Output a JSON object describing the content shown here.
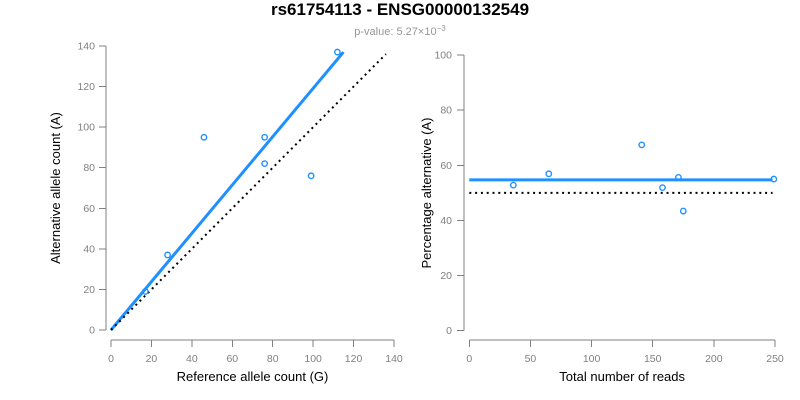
{
  "header": {
    "title": "rs61754113 - ENSG00000132549",
    "pvalue_label": "p-value: ",
    "pvalue_mantissa": "5.27",
    "pvalue_times10": "×10",
    "pvalue_exponent": "−3"
  },
  "colors": {
    "accent_blue": "#1E90FF",
    "dotted_line_black": "#000000",
    "axis_gray": "#808080",
    "tick_label_gray": "#808080",
    "axis_title_black": "#000000",
    "subtitle_gray": "#969696",
    "background": "#ffffff"
  },
  "chart_data": [
    {
      "type": "scatter",
      "name": "allele-counts-scatter",
      "xlabel": "Reference allele count (G)",
      "ylabel": "Alternative allele count (A)",
      "xlim": [
        0,
        140
      ],
      "ylim": [
        0,
        140
      ],
      "xticks": [
        0,
        20,
        40,
        60,
        80,
        100,
        120,
        140
      ],
      "yticks": [
        0,
        20,
        40,
        60,
        80,
        100,
        120,
        140
      ],
      "grid": false,
      "legend": false,
      "marker": "open-circle",
      "points": [
        {
          "x": 17,
          "y": 19
        },
        {
          "x": 28,
          "y": 37
        },
        {
          "x": 46,
          "y": 95
        },
        {
          "x": 76,
          "y": 82
        },
        {
          "x": 76,
          "y": 95
        },
        {
          "x": 99,
          "y": 76
        },
        {
          "x": 112,
          "y": 137
        }
      ],
      "lines": [
        {
          "name": "fit-line",
          "style": "solid",
          "color": "#1E90FF",
          "from": [
            0,
            0
          ],
          "to": [
            115,
            137
          ]
        },
        {
          "name": "identity-line",
          "style": "dotted",
          "color": "#000000",
          "from": [
            0,
            0
          ],
          "to": [
            136,
            136
          ]
        }
      ]
    },
    {
      "type": "scatter",
      "name": "percentage-vs-reads-scatter",
      "xlabel": "Total number of reads",
      "ylabel": "Percentage alternative (A)",
      "xlim": [
        0,
        250
      ],
      "ylim": [
        0,
        100
      ],
      "xticks": [
        0,
        50,
        100,
        150,
        200,
        250
      ],
      "yticks": [
        0,
        20,
        40,
        60,
        80,
        100
      ],
      "grid": false,
      "legend": false,
      "marker": "open-circle",
      "points": [
        {
          "x": 36,
          "y": 52.8
        },
        {
          "x": 65,
          "y": 56.9
        },
        {
          "x": 141,
          "y": 67.4
        },
        {
          "x": 158,
          "y": 51.9
        },
        {
          "x": 171,
          "y": 55.6
        },
        {
          "x": 175,
          "y": 43.4
        },
        {
          "x": 249,
          "y": 55.0
        }
      ],
      "lines": [
        {
          "name": "mean-percentage-line",
          "style": "solid",
          "color": "#1E90FF",
          "from": [
            0,
            54.7
          ],
          "to": [
            248,
            54.7
          ]
        },
        {
          "name": "expected-50-line",
          "style": "dotted",
          "color": "#000000",
          "from": [
            0,
            50
          ],
          "to": [
            248,
            50
          ]
        }
      ]
    }
  ]
}
